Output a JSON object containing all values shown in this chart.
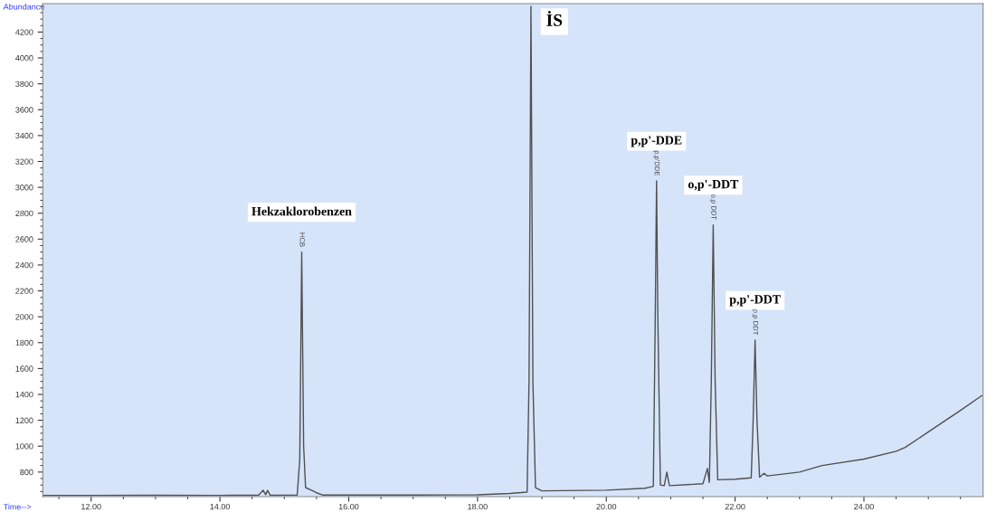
{
  "chart_data": {
    "type": "line",
    "xlabel": "Time-->",
    "ylabel": "Abundance",
    "xlim": [
      11.25,
      25.85
    ],
    "ylim": [
      610,
      4420
    ],
    "xticks": [
      {
        "value": 12,
        "label": "12.00"
      },
      {
        "value": 14,
        "label": "14.00"
      },
      {
        "value": 16,
        "label": "16.00"
      },
      {
        "value": 18,
        "label": "18.00"
      },
      {
        "value": 20,
        "label": "20.00"
      },
      {
        "value": 22,
        "label": "22.00"
      },
      {
        "value": 24,
        "label": "24.00"
      }
    ],
    "yticks": [
      800,
      1000,
      1200,
      1400,
      1600,
      1800,
      2000,
      2200,
      2400,
      2600,
      2800,
      3000,
      3200,
      3400,
      3600,
      3800,
      4000,
      4200
    ],
    "grid": false,
    "legend": false,
    "marker": "none",
    "line_style": "solid",
    "series": [
      {
        "color": "#505050",
        "x": [
          11.26,
          12.0,
          13.0,
          14.0,
          14.6,
          14.67,
          14.71,
          14.74,
          14.78,
          15.2,
          15.24,
          15.27,
          15.3,
          15.33,
          15.42,
          15.5,
          15.6,
          17.0,
          18.0,
          18.5,
          18.77,
          18.8,
          18.83,
          18.86,
          18.9,
          19.0,
          20.0,
          20.6,
          20.73,
          20.76,
          20.78,
          20.8,
          20.84,
          20.9,
          20.94,
          20.98,
          21.5,
          21.57,
          21.6,
          21.63,
          21.66,
          21.69,
          21.73,
          22.0,
          22.25,
          22.28,
          22.31,
          22.34,
          22.38,
          22.45,
          22.5,
          23.0,
          23.35,
          24.0,
          24.5,
          24.64,
          25.06,
          25.48,
          25.83
        ],
        "values": [
          620,
          620,
          621,
          620,
          621,
          660,
          625,
          658,
          621,
          622,
          900,
          2500,
          1000,
          680,
          660,
          640,
          622,
          622,
          624,
          635,
          645,
          1500,
          4400,
          1500,
          680,
          655,
          660,
          675,
          690,
          2000,
          3050,
          2000,
          700,
          695,
          800,
          695,
          710,
          828,
          720,
          1500,
          2710,
          1500,
          740,
          745,
          755,
          1200,
          1820,
          1200,
          760,
          790,
          770,
          800,
          850,
          900,
          960,
          990,
          1130,
          1270,
          1390
        ]
      }
    ],
    "annotations": [
      "Hekzaklorobenzen",
      "İS",
      "p,p'-DDE",
      "o,p'-DDT",
      "p,p'-DDT",
      "HCB",
      "p,p'DDE",
      "o,p DDT",
      "p,p DDT"
    ]
  }
}
